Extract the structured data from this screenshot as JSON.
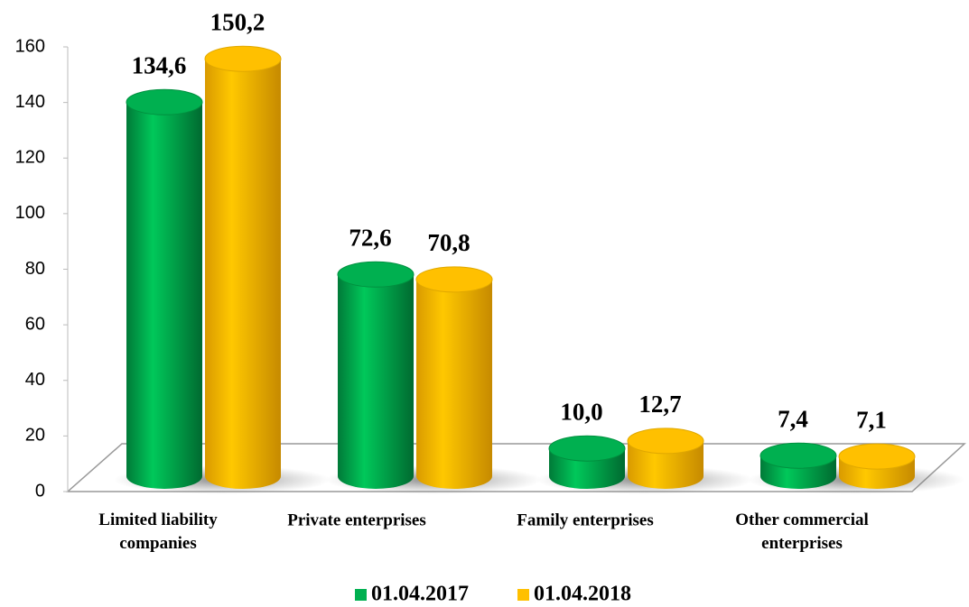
{
  "chart_data": {
    "type": "bar",
    "categories": [
      "Limited liability companies",
      "Private enterprises",
      "Family enterprises",
      "Other commercial enterprises"
    ],
    "series": [
      {
        "name": "01.04.2017",
        "color": "#00b050",
        "values": [
          134.6,
          72.6,
          10.0,
          7.4
        ],
        "value_labels": [
          "134,6",
          "72,6",
          "10,0",
          "7,4"
        ]
      },
      {
        "name": "01.04.2018",
        "color": "#ffc000",
        "values": [
          150.2,
          70.8,
          12.7,
          7.1
        ],
        "value_labels": [
          "150,2",
          "70,8",
          "12,7",
          "7,1"
        ]
      }
    ],
    "ylim": [
      0,
      160
    ],
    "yticks": [
      0,
      20,
      40,
      60,
      80,
      100,
      120,
      140,
      160
    ],
    "legend": "bottom"
  }
}
